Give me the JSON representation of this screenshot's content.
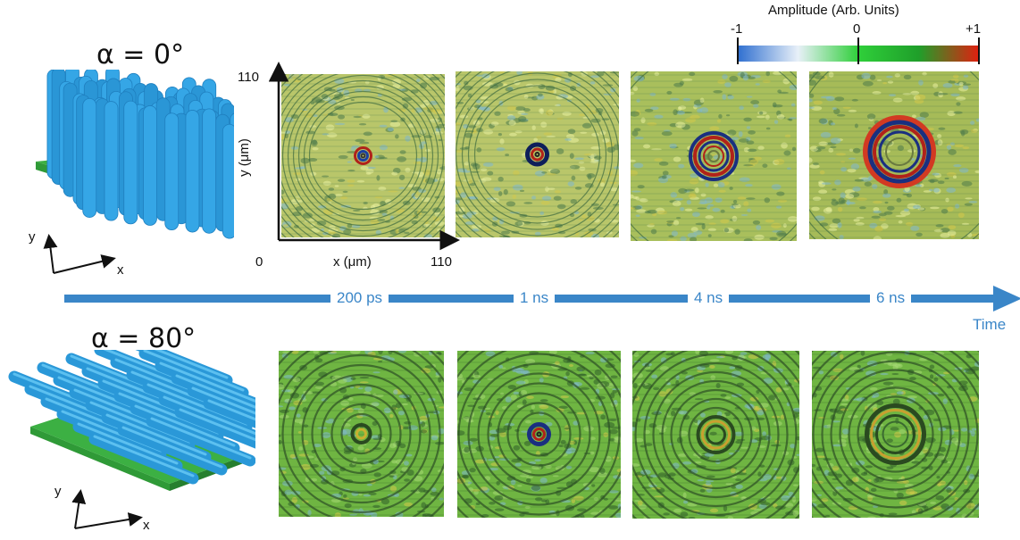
{
  "rows": [
    {
      "alpha_label": "α = 0°"
    },
    {
      "alpha_label": "α = 80°"
    }
  ],
  "axes": {
    "x_label": "x (μm)",
    "y_label": "y (μm)",
    "origin": "0",
    "x_max": "110",
    "y_max": "110"
  },
  "inset_axes": {
    "x": "x",
    "y": "y"
  },
  "timeline": {
    "times": [
      "200 ps",
      "1 ns",
      "4 ns",
      "6 ns"
    ],
    "axis_label": "Time",
    "color": "#3a86c8"
  },
  "colorbar": {
    "title": "Amplitude (Arb. Units)",
    "ticks": [
      "-1",
      "0",
      "+1"
    ],
    "colors": [
      "#2f6fd0",
      "#e8f0f8",
      "#2fcf3a",
      "#1f9f2a",
      "#e02010"
    ]
  }
}
